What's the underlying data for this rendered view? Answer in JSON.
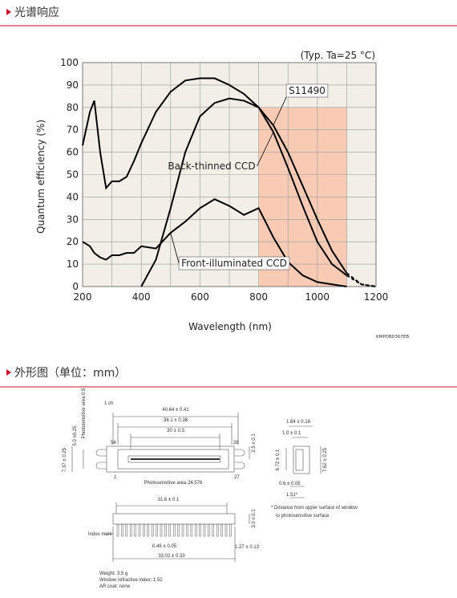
{
  "header": {
    "title": "光谱响应"
  },
  "chart_data": {
    "type": "line",
    "annotation": "(Typ. Ta=25 °C)",
    "x_label": "Wavelength (nm)",
    "y_label": "Quantum efficiency (%)",
    "code": "KMPDB0367EB",
    "x": [
      200,
      225,
      240,
      260,
      280,
      300,
      325,
      350,
      375,
      400,
      450,
      500,
      550,
      600,
      650,
      700,
      750,
      800,
      850,
      900,
      950,
      1000,
      1050,
      1100,
      1150,
      1200
    ],
    "series": [
      {
        "name": "S11490",
        "color": "#000000",
        "values": [
          null,
          null,
          null,
          null,
          null,
          null,
          null,
          null,
          null,
          0,
          12,
          35,
          60,
          76,
          82,
          84,
          83,
          80,
          72,
          60,
          45,
          30,
          16,
          6,
          1,
          0
        ]
      },
      {
        "name": "Back-thinned CCD",
        "color": "#000000",
        "values": [
          63,
          78,
          83,
          60,
          44,
          47,
          47,
          49,
          56,
          64,
          78,
          87,
          92,
          93,
          93,
          90,
          86,
          80,
          69,
          53,
          36,
          20,
          10,
          5,
          1,
          0
        ]
      },
      {
        "name": "Front-illuminated CCD",
        "color": "#000000",
        "values": [
          20,
          18,
          15,
          13,
          12,
          14,
          14,
          15,
          15,
          18,
          17,
          24,
          29,
          35,
          39,
          36,
          32,
          35,
          22,
          11,
          5,
          2,
          1,
          0,
          null,
          null
        ]
      }
    ],
    "dashed_from": 1100,
    "xlim": [
      200,
      1200
    ],
    "ylim": [
      0,
      100
    ],
    "xticks": [
      200,
      400,
      600,
      800,
      1000,
      1200
    ],
    "xminor": [
      300,
      500,
      700,
      900,
      1100
    ],
    "yticks": [
      0,
      10,
      20,
      30,
      40,
      50,
      60,
      70,
      80,
      90,
      100
    ],
    "grid": true,
    "background": "#f3efe6",
    "highlight": {
      "xlim": [
        800,
        1100
      ],
      "ylim": [
        0,
        80
      ],
      "color": "#f9cbb4"
    }
  },
  "outline": {
    "title": "外形图（单位：mm）",
    "labels": [
      "Photosensitive area 0.5",
      "1 ch",
      "40.64 ± 0.41",
      "38.1 ± 0.38",
      "30 ± 0.3",
      "54",
      "28",
      "5.0 ±0.25",
      "7.37 ± 0.25",
      "2.5 ± 0.1",
      "1",
      "27",
      "Photosensitive area 24.576",
      "1.84 ± 0.18",
      "1.0 ± 0.1",
      "6.72 ± 0.1",
      "7.62 ± 0.25",
      "0.6 ± 0.05",
      "1.51*",
      "* Distance from upper surface of window",
      "to photosensitive surface",
      "31.6 ± 0.1",
      "3.0 ± 0.1",
      "Index mark",
      "0.46 ± 0.05",
      "1.27 ± 0.13",
      "33.02 ± 0.33",
      "Weight: 3.5 g",
      "Window refractive index: 1.52",
      "AR coat: none"
    ]
  }
}
